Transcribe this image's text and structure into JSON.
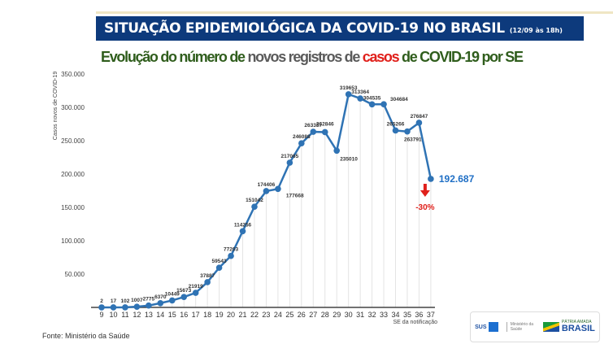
{
  "header": {
    "title": "SITUAÇÃO EPIDEMIOLÓGICA DA COVID-19 NO BRASIL",
    "date": "(12/09 às 18h)"
  },
  "subtitle": {
    "part1": "Evolução do número de ",
    "part2": "novos registros de ",
    "part3": "casos",
    "part4": " de COVID-19 por SE"
  },
  "source": "Fonte: Ministério da Saúde",
  "logos": {
    "sus": "SUS",
    "ministry": "Ministério da Saúde",
    "brasil_top": "PÁTRIA AMADA",
    "brasil": "BRASIL"
  },
  "colors": {
    "header_bg": "#0d3a7c",
    "line": "#2f73b4",
    "highlight": "#1f6fc5",
    "drop": "#e0201b"
  },
  "chart_data": {
    "type": "line",
    "title": "",
    "xlabel": "SE da notificação",
    "ylabel": "Casos novos de COVID-19",
    "x": [
      9,
      10,
      11,
      12,
      13,
      14,
      15,
      16,
      17,
      18,
      19,
      20,
      21,
      22,
      23,
      24,
      25,
      26,
      27,
      28,
      29,
      30,
      31,
      32,
      33,
      34,
      35,
      36,
      37
    ],
    "values": [
      2,
      17,
      102,
      1007,
      2775,
      6370,
      10449,
      15673,
      21919,
      37887,
      59543,
      77203,
      114256,
      151042,
      174406,
      177668,
      217065,
      246088,
      263337,
      262846,
      235010,
      319653,
      313364,
      304535,
      304684,
      265266,
      263791,
      276847,
      192687
    ],
    "labels": [
      "2",
      "17",
      "102",
      "1007",
      "2775",
      "6370",
      "10449",
      "15673",
      "21919",
      "37887",
      "59543",
      "77203",
      "114256",
      "151042",
      "174406",
      "177668",
      "217065",
      "246088",
      "263337",
      "262846",
      "235010",
      "319653",
      "313364",
      "304535",
      "304684",
      "265266",
      "263791",
      "276847",
      ""
    ],
    "last_label": "192.687",
    "change_label": "-30%",
    "yticks": [
      50000,
      100000,
      150000,
      200000,
      250000,
      300000,
      350000
    ],
    "ytick_labels": [
      "50.000",
      "100.000",
      "150.000",
      "200.000",
      "250.000",
      "300.000",
      "350.000"
    ],
    "ylim": [
      0,
      350000
    ],
    "grid": "vertical lines at points"
  }
}
